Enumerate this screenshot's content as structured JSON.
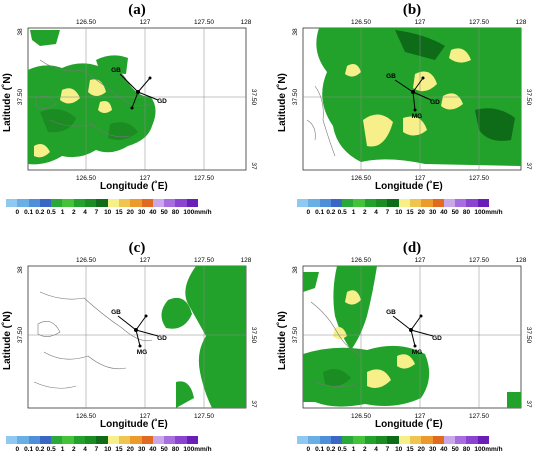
{
  "panels": [
    {
      "label": "(a)",
      "top_ticks": [
        "126.50",
        "127",
        "127.50",
        "128"
      ],
      "bottom_ticks": [
        "126.50",
        "127",
        "127.50"
      ],
      "left_ticks": [
        "38",
        "37.50"
      ],
      "right_ticks": [
        "37.50",
        "37"
      ],
      "station_labels": [
        "GB",
        "GD"
      ]
    },
    {
      "label": "(b)",
      "top_ticks": [
        "126.50",
        "127",
        "127.50",
        "128"
      ],
      "bottom_ticks": [
        "126.50",
        "127",
        "127.50"
      ],
      "left_ticks": [
        "38",
        "37.50"
      ],
      "right_ticks": [
        "37.50",
        "37"
      ],
      "station_labels": [
        "GB",
        "GD",
        "MG"
      ]
    },
    {
      "label": "(c)",
      "top_ticks": [
        "126.50",
        "127",
        "127.50",
        "128"
      ],
      "bottom_ticks": [
        "126.50",
        "127",
        "127.50"
      ],
      "left_ticks": [
        "38",
        "37.50"
      ],
      "right_ticks": [
        "37.50",
        "37"
      ],
      "station_labels": [
        "GB",
        "GD",
        "MG"
      ]
    },
    {
      "label": "(d)",
      "top_ticks": [
        "126.50",
        "127",
        "127.50",
        "128"
      ],
      "bottom_ticks": [
        "126.50",
        "127",
        "127.50"
      ],
      "left_ticks": [
        "38",
        "37.50"
      ],
      "right_ticks": [
        "37.50",
        "37"
      ],
      "station_labels": [
        "GB",
        "GD",
        "MG"
      ]
    }
  ],
  "axes": {
    "xlabel": "Longitude (˚E)",
    "ylabel": "Latitude (˚N)"
  },
  "colorbar": {
    "labels": [
      "0",
      "0.1",
      "0.2",
      "0.5",
      "1",
      "2",
      "4",
      "7",
      "10",
      "15",
      "20",
      "30",
      "40",
      "50",
      "80",
      "100mm/h"
    ],
    "colors": [
      "#8fc8f0",
      "#6aaee6",
      "#4f8ed8",
      "#3a67c6",
      "#28a93a",
      "#44c23a",
      "#22a22a",
      "#1a8c22",
      "#0e6b18",
      "#f6ef8a",
      "#efc44f",
      "#ec9a2b",
      "#e06a22",
      "#c8a8e8",
      "#a86ee0",
      "#8a44d0",
      "#6a1eb8"
    ]
  }
}
